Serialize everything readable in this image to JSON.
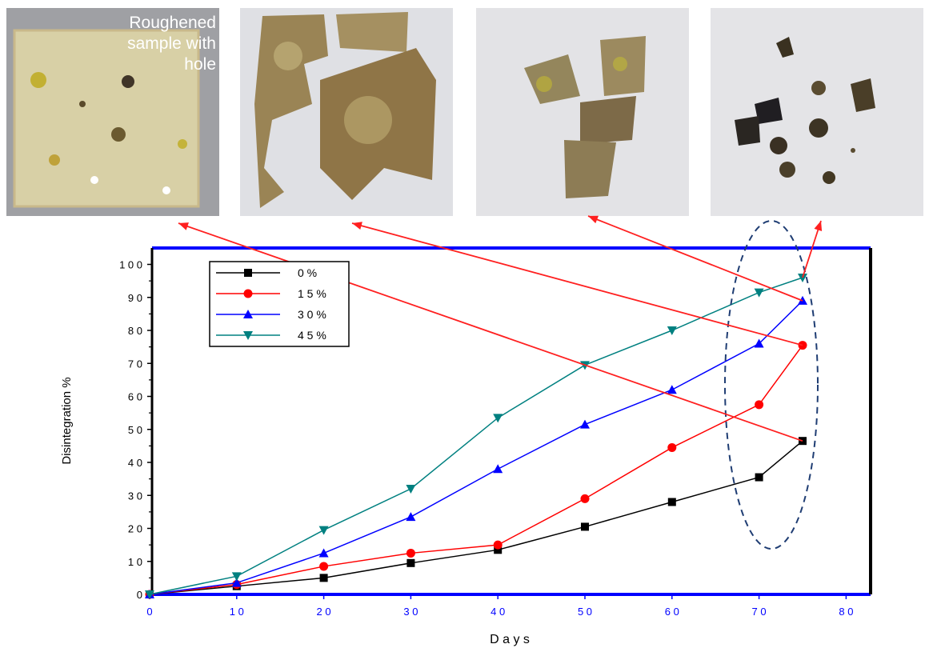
{
  "photos": {
    "first_caption": "Roughened\nsample with\nhole"
  },
  "chart_data": {
    "type": "line",
    "title": "",
    "xlabel": "D a y s",
    "ylabel": "Disintegration %",
    "xlim": [
      0,
      85
    ],
    "ylim": [
      0,
      105
    ],
    "x_ticks": [
      0,
      10,
      20,
      30,
      40,
      50,
      60,
      70,
      80
    ],
    "x_tick_labels": [
      "0",
      "1 0",
      "2 0",
      "3 0",
      "4 0",
      "5 0",
      "6 0",
      "7 0",
      "8 0"
    ],
    "y_ticks": [
      0,
      10,
      20,
      30,
      40,
      50,
      60,
      70,
      80,
      90,
      100
    ],
    "y_tick_labels": [
      "0",
      "1 0",
      "2 0",
      "3 0",
      "4 0",
      "5 0",
      "6 0",
      "7 0",
      "8 0",
      "9 0",
      "1 0 0"
    ],
    "legend_position": "top-left",
    "grid": false,
    "series": [
      {
        "name": "0 %",
        "color": "#000000",
        "marker": "square",
        "x": [
          0,
          10,
          20,
          30,
          40,
          50,
          60,
          70,
          75
        ],
        "y": [
          0,
          2.5,
          5,
          9.5,
          13.5,
          20.5,
          28,
          35.5,
          46.5
        ]
      },
      {
        "name": "1 5 %",
        "color": "#ff0000",
        "marker": "circle",
        "x": [
          0,
          10,
          20,
          30,
          40,
          50,
          60,
          70,
          75
        ],
        "y": [
          0,
          3,
          8.5,
          12.5,
          15,
          29,
          44.5,
          57.5,
          75.5
        ]
      },
      {
        "name": "3 0 %",
        "color": "#0000ff",
        "marker": "triangle-up",
        "x": [
          0,
          10,
          20,
          30,
          40,
          50,
          60,
          70,
          75
        ],
        "y": [
          0,
          3.5,
          12.5,
          23.5,
          38,
          51.5,
          62,
          76,
          89
        ]
      },
      {
        "name": "4 5 %",
        "color": "#008080",
        "marker": "triangle-down",
        "x": [
          0,
          10,
          20,
          30,
          40,
          50,
          60,
          70,
          75
        ],
        "y": [
          0,
          5.5,
          19.5,
          32,
          53.5,
          69.5,
          80,
          91.5,
          96
        ]
      }
    ]
  }
}
